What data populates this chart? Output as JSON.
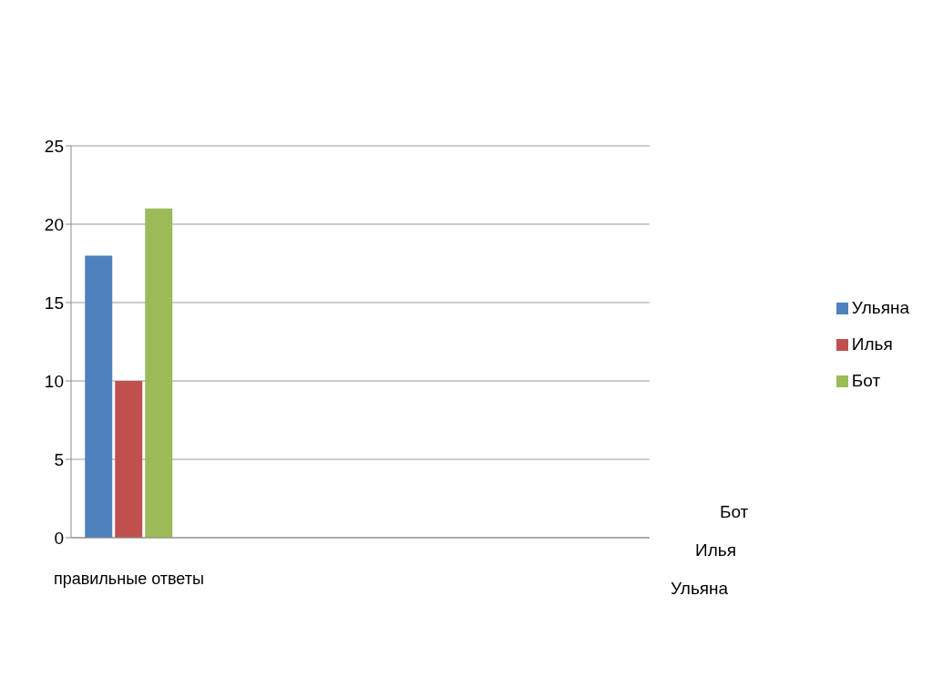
{
  "chart_data": {
    "type": "bar",
    "categories": [
      "правильные ответы",
      null,
      null,
      null,
      null
    ],
    "series": [
      {
        "name": "Ульяна",
        "color": "#4f81bd",
        "values": [
          18,
          null,
          null,
          null,
          null
        ]
      },
      {
        "name": "Илья",
        "color": "#c0504d",
        "values": [
          10,
          null,
          null,
          null,
          null
        ]
      },
      {
        "name": "Бот",
        "color": "#9bbb59",
        "values": [
          21,
          null,
          null,
          null,
          null
        ]
      }
    ],
    "ylim": [
      0,
      25
    ],
    "yticks": [
      0,
      5,
      10,
      15,
      20,
      25
    ],
    "grid": "y",
    "legend": "right"
  }
}
